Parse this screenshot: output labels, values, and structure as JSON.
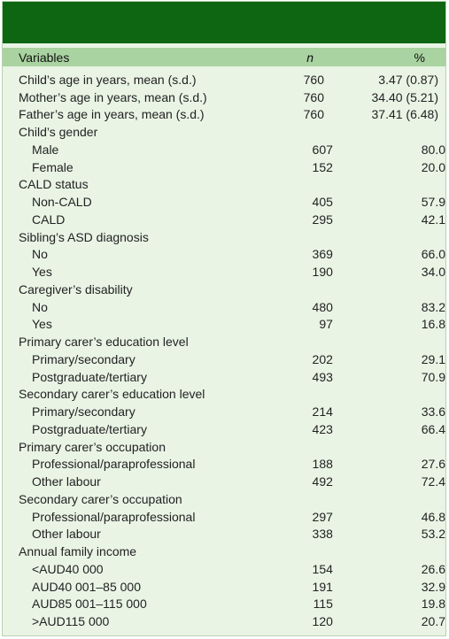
{
  "header": {
    "variables": "Variables",
    "n": "n",
    "pct": "%"
  },
  "rows": [
    {
      "label": "Child’s age in years, mean (s.d.)",
      "n": "760",
      "pct": "3.47 (0.87)",
      "sub": false
    },
    {
      "label": "Mother’s age in years, mean (s.d.)",
      "n": "760",
      "pct": "34.40 (5.21)",
      "sub": false
    },
    {
      "label": "Father’s age in years, mean (s.d.)",
      "n": "760",
      "pct": "37.41 (6.48)",
      "sub": false
    },
    {
      "label": "Child’s gender",
      "n": "",
      "pct": "",
      "sub": false
    },
    {
      "label": "Male",
      "n": "607",
      "pct": "80.0",
      "sub": true
    },
    {
      "label": "Female",
      "n": "152",
      "pct": "20.0",
      "sub": true
    },
    {
      "label": "CALD status",
      "n": "",
      "pct": "",
      "sub": false
    },
    {
      "label": "Non-CALD",
      "n": "405",
      "pct": "57.9",
      "sub": true
    },
    {
      "label": "CALD",
      "n": "295",
      "pct": "42.1",
      "sub": true
    },
    {
      "label": "Sibling’s ASD diagnosis",
      "n": "",
      "pct": "",
      "sub": false
    },
    {
      "label": "No",
      "n": "369",
      "pct": "66.0",
      "sub": true
    },
    {
      "label": "Yes",
      "n": "190",
      "pct": "34.0",
      "sub": true
    },
    {
      "label": "Caregiver’s disability",
      "n": "",
      "pct": "",
      "sub": false
    },
    {
      "label": "No",
      "n": "480",
      "pct": "83.2",
      "sub": true
    },
    {
      "label": "Yes",
      "n": "97",
      "pct": "16.8",
      "sub": true
    },
    {
      "label": "Primary carer’s education level",
      "n": "",
      "pct": "",
      "sub": false
    },
    {
      "label": "Primary/secondary",
      "n": "202",
      "pct": "29.1",
      "sub": true
    },
    {
      "label": "Postgraduate/tertiary",
      "n": "493",
      "pct": "70.9",
      "sub": true
    },
    {
      "label": "Secondary carer’s education level",
      "n": "",
      "pct": "",
      "sub": false
    },
    {
      "label": "Primary/secondary",
      "n": "214",
      "pct": "33.6",
      "sub": true
    },
    {
      "label": "Postgraduate/tertiary",
      "n": "423",
      "pct": "66.4",
      "sub": true
    },
    {
      "label": "Primary carer’s occupation",
      "n": "",
      "pct": "",
      "sub": false
    },
    {
      "label": "Professional/paraprofessional",
      "n": "188",
      "pct": "27.6",
      "sub": true
    },
    {
      "label": "Other labour",
      "n": "492",
      "pct": "72.4",
      "sub": true
    },
    {
      "label": "Secondary carer’s occupation",
      "n": "",
      "pct": "",
      "sub": false
    },
    {
      "label": "Professional/paraprofessional",
      "n": "297",
      "pct": "46.8",
      "sub": true
    },
    {
      "label": "Other labour",
      "n": "338",
      "pct": "53.2",
      "sub": true
    },
    {
      "label": "Annual family income",
      "n": "",
      "pct": "",
      "sub": false
    },
    {
      "label": "<AUD40 000",
      "n": "154",
      "pct": "26.6",
      "sub": true
    },
    {
      "label": "AUD40 001–85 000",
      "n": "191",
      "pct": "32.9",
      "sub": true
    },
    {
      "label": "AUD85 001–115 000",
      "n": "115",
      "pct": "19.8",
      "sub": true
    },
    {
      "label": ">AUD115 000",
      "n": "120",
      "pct": "20.7",
      "sub": true
    }
  ]
}
